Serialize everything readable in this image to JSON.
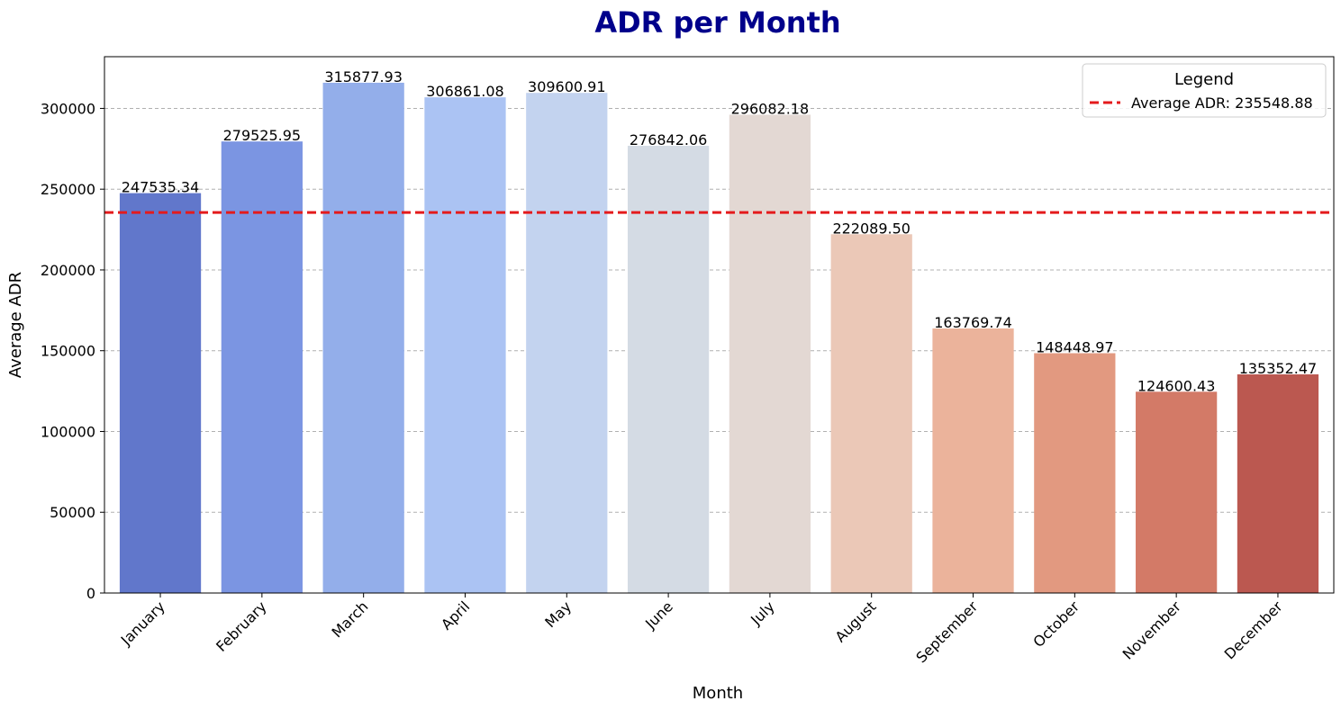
{
  "chart_data": {
    "type": "bar",
    "title": "ADR per Month",
    "xlabel": "Month",
    "ylabel": "Average ADR",
    "categories": [
      "January",
      "February",
      "March",
      "April",
      "May",
      "June",
      "July",
      "August",
      "September",
      "October",
      "November",
      "December"
    ],
    "values": [
      247535.34,
      279525.95,
      315877.93,
      306861.08,
      309600.91,
      276842.06,
      296082.18,
      222089.5,
      163769.74,
      148448.97,
      124600.43,
      135352.47
    ],
    "value_labels": [
      "247535.34",
      "279525.95",
      "315877.93",
      "306861.08",
      "309600.91",
      "276842.06",
      "296082.18",
      "222089.50",
      "163769.74",
      "148448.97",
      "124600.43",
      "135352.47"
    ],
    "bar_colors": [
      "#6177cb",
      "#7b95e2",
      "#93aeea",
      "#abc3f3",
      "#c3d3ef",
      "#d4dbe4",
      "#e3d8d3",
      "#ebc8b7",
      "#ebb39b",
      "#e29980",
      "#d37a67",
      "#bb5850"
    ],
    "ylim": [
      0,
      332000
    ],
    "yticks": [
      0,
      50000,
      100000,
      150000,
      200000,
      250000,
      300000
    ],
    "ytick_labels": [
      "0",
      "50000",
      "100000",
      "150000",
      "200000",
      "250000",
      "300000"
    ],
    "grid": "y, dashed",
    "reference_line": {
      "value": 235548.88,
      "label": "Average ADR: 235548.88",
      "color": "#e41a1c",
      "style": "dashed"
    },
    "legend": {
      "title": "Legend",
      "placement": "top-right"
    },
    "title_color": "#00008b"
  }
}
